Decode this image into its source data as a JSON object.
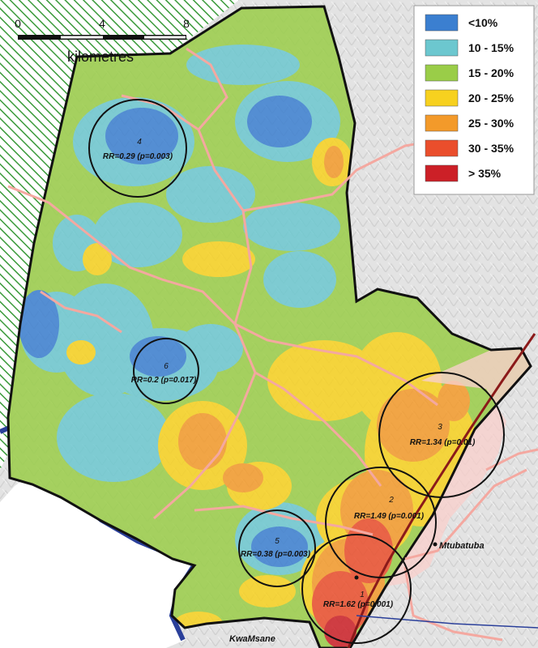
{
  "scale_bar": {
    "ticks": [
      "0",
      "4",
      "8"
    ],
    "unit": "kilometres"
  },
  "legend": {
    "items": [
      {
        "label": "<10%",
        "color": "#3b7fd0"
      },
      {
        "label": "10 - 15%",
        "color": "#6cc7cf"
      },
      {
        "label": "15 - 20%",
        "color": "#9acd48"
      },
      {
        "label": "20 - 25%",
        "color": "#f7d11f"
      },
      {
        "label": "25 - 30%",
        "color": "#f39a2a"
      },
      {
        "label": "30 - 35%",
        "color": "#ea4e2c"
      },
      {
        "label": "> 35%",
        "color": "#cc2027"
      }
    ]
  },
  "clusters": [
    {
      "id": "1",
      "rr": "RR=1.62 (p=0.001)"
    },
    {
      "id": "2",
      "rr": "RR=1.49 (p=0.001)"
    },
    {
      "id": "3",
      "rr": "RR=1.34 (p=0.01)"
    },
    {
      "id": "4",
      "rr": "RR=0.29 (p=0.003)"
    },
    {
      "id": "5",
      "rr": "RR=0.38 (p=0.003)"
    },
    {
      "id": "6",
      "rr": "RR=0.2 (p=0.017)"
    }
  ],
  "towns": {
    "mtubatuba": "Mtubatuba",
    "kwamsane": "KwaMsane"
  },
  "colors": {
    "boundary": "#111111",
    "roads": "#f4a8a0",
    "highway": "#8b1a1a",
    "water": "#2a3f9a",
    "hatch": "#3a9a3a",
    "background": "#e6e6e6"
  }
}
